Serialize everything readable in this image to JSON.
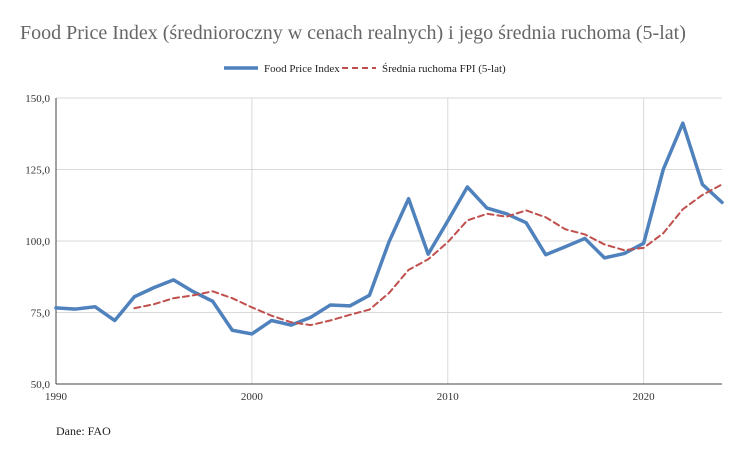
{
  "chart_data": {
    "type": "line",
    "title": "Food Price Index (średnioroczny w cenach realnych) i jego średnia ruchoma (5-lat)",
    "xlabel": "",
    "ylabel": "",
    "xlim": [
      1990,
      2024
    ],
    "ylim": [
      50,
      150
    ],
    "x_ticks": [
      1990,
      2000,
      2010,
      2020
    ],
    "x_tick_labels": [
      "1990",
      "2000",
      "2010",
      "2020"
    ],
    "y_ticks": [
      50,
      75,
      100,
      125,
      150
    ],
    "y_tick_labels": [
      "50,0",
      "75,0",
      "100,0",
      "125,0",
      "150,0"
    ],
    "grid": true,
    "legend_position": "top-center",
    "series": [
      {
        "name": "Food Price Index",
        "color": "#4f81bd",
        "style": "solid",
        "x": [
          1990,
          1991,
          1992,
          1993,
          1994,
          1995,
          1996,
          1997,
          1998,
          1999,
          2000,
          2001,
          2002,
          2003,
          2004,
          2005,
          2006,
          2007,
          2008,
          2009,
          2010,
          2011,
          2012,
          2013,
          2014,
          2015,
          2016,
          2017,
          2018,
          2019,
          2020,
          2021,
          2022,
          2023,
          2024
        ],
        "values": [
          76.6,
          76.2,
          77.0,
          72.2,
          80.5,
          83.7,
          86.4,
          82.3,
          78.9,
          68.8,
          67.5,
          72.2,
          70.6,
          73.3,
          77.6,
          77.3,
          81.0,
          99.7,
          114.8,
          95.4,
          107.0,
          118.9,
          111.5,
          109.5,
          106.4,
          95.2,
          98.0,
          100.9,
          94.1,
          95.6,
          99.2,
          125.0,
          141.2,
          119.8,
          113.5
        ]
      },
      {
        "name": "Średnia ruchoma FPI (5-lat)",
        "color": "#c0504d",
        "style": "dashed",
        "x": [
          1994,
          1995,
          1996,
          1997,
          1998,
          1999,
          2000,
          2001,
          2002,
          2003,
          2004,
          2005,
          2006,
          2007,
          2008,
          2009,
          2010,
          2011,
          2012,
          2013,
          2014,
          2015,
          2016,
          2017,
          2018,
          2019,
          2020,
          2021,
          2022,
          2023,
          2024
        ],
        "values": [
          76.5,
          77.9,
          80.0,
          81.0,
          82.4,
          80.0,
          76.8,
          73.9,
          71.6,
          70.6,
          72.2,
          74.2,
          76.0,
          81.8,
          89.9,
          93.6,
          99.6,
          107.2,
          109.5,
          108.5,
          110.7,
          108.3,
          104.1,
          102.3,
          98.8,
          96.8,
          97.6,
          102.7,
          111.1,
          116.1,
          119.8
        ]
      }
    ]
  },
  "source_note": "Dane: FAO"
}
